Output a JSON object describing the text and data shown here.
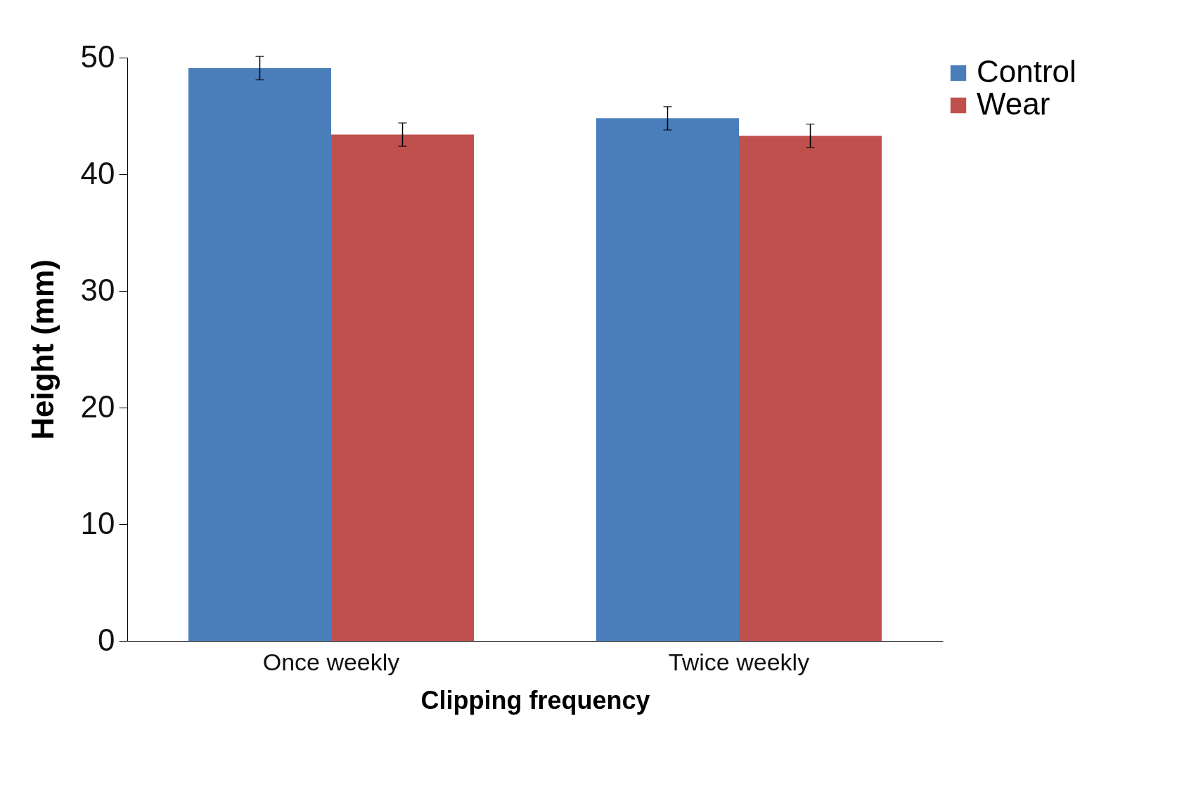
{
  "chart_data": {
    "type": "bar",
    "xlabel": "Clipping frequency",
    "ylabel": "Height (mm)",
    "categories": [
      "Once weekly",
      "Twice weekly"
    ],
    "series": [
      {
        "name": "Control",
        "color": "#4a7ebb",
        "values": [
          49.1,
          44.8
        ],
        "errors": [
          1.0,
          1.0
        ]
      },
      {
        "name": "Wear",
        "color": "#c0504d",
        "values": [
          43.4,
          43.3
        ],
        "errors": [
          1.0,
          1.0
        ]
      }
    ],
    "ylim": [
      0,
      50
    ],
    "yticks": [
      0,
      10,
      20,
      30,
      40,
      50
    ],
    "grid": false,
    "legend": "right"
  }
}
